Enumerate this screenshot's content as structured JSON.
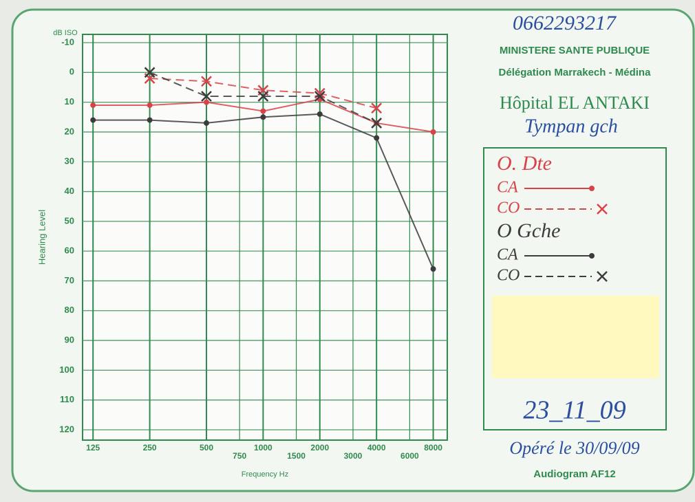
{
  "header": {
    "phone": "0662293217",
    "ministry": "MINISTERE SANTE PUBLIQUE",
    "delegation": "Délégation Marrakech - Médina",
    "hospital": "Hôpital EL ANTAKI",
    "note": "Tympan gch"
  },
  "chart_data": {
    "type": "line",
    "y_unit": "dB ISO",
    "ylabel": "Hearing Level",
    "xlabel": "Frequency Hz",
    "xscale": "log",
    "xlim": [
      110,
      9500
    ],
    "ylim": [
      -10,
      120
    ],
    "xticks": [
      125,
      250,
      500,
      750,
      1000,
      1500,
      2000,
      3000,
      4000,
      6000,
      8000
    ],
    "yticks": [
      -10,
      0,
      10,
      20,
      30,
      40,
      50,
      60,
      70,
      80,
      90,
      100,
      110,
      120
    ],
    "grid": true,
    "y_inverted": true,
    "legend_titles": [
      "O. Dte",
      "O Gche"
    ],
    "series": [
      {
        "name": "CA",
        "group": 0,
        "color": "#d8434a",
        "marker": "o",
        "dashed": false,
        "x": [
          125,
          250,
          500,
          1000,
          2000,
          4000,
          8000
        ],
        "values": [
          11,
          11,
          10,
          13,
          9,
          17,
          20
        ]
      },
      {
        "name": "CO",
        "group": 0,
        "color": "#d8434a",
        "marker": "x",
        "dashed": true,
        "x": [
          250,
          500,
          1000,
          2000,
          4000
        ],
        "values": [
          2,
          3,
          6,
          7,
          12
        ]
      },
      {
        "name": "CA",
        "group": 1,
        "color": "#3c3c3c",
        "marker": "o",
        "dashed": false,
        "x": [
          125,
          250,
          500,
          1000,
          2000,
          4000,
          8000
        ],
        "values": [
          16,
          16,
          17,
          15,
          14,
          22,
          66
        ]
      },
      {
        "name": "CO",
        "group": 1,
        "color": "#3c3c3c",
        "marker": "x",
        "dashed": true,
        "x": [
          250,
          500,
          1000,
          2000,
          4000
        ],
        "values": [
          0,
          8,
          8,
          8,
          17
        ]
      }
    ]
  },
  "footer": {
    "date": "23_11_09",
    "note": "Opéré le 30/09/09",
    "form": "Audiogram AF12"
  }
}
